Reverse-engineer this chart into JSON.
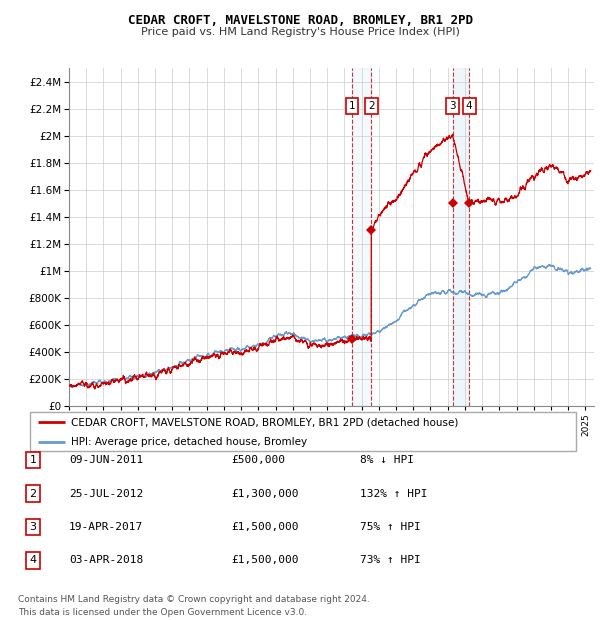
{
  "title": "CEDAR CROFT, MAVELSTONE ROAD, BROMLEY, BR1 2PD",
  "subtitle": "Price paid vs. HM Land Registry's House Price Index (HPI)",
  "footer": "Contains HM Land Registry data © Crown copyright and database right 2024.\nThis data is licensed under the Open Government Licence v3.0.",
  "legend_red": "CEDAR CROFT, MAVELSTONE ROAD, BROMLEY, BR1 2PD (detached house)",
  "legend_blue": "HPI: Average price, detached house, Bromley",
  "transactions": [
    {
      "num": 1,
      "date": "09-JUN-2011",
      "price": 500000,
      "pct": "8%",
      "dir": "↓",
      "year": 2011.44
    },
    {
      "num": 2,
      "date": "25-JUL-2012",
      "price": 1300000,
      "pct": "132%",
      "dir": "↑",
      "year": 2012.56
    },
    {
      "num": 3,
      "date": "19-APR-2017",
      "price": 1500000,
      "pct": "75%",
      "dir": "↑",
      "year": 2017.29
    },
    {
      "num": 4,
      "date": "03-APR-2018",
      "price": 1500000,
      "pct": "73%",
      "dir": "↑",
      "year": 2018.25
    }
  ],
  "table_rows": [
    {
      "num": 1,
      "date": "09-JUN-2011",
      "price": "£500,000",
      "pct": "8% ↓ HPI"
    },
    {
      "num": 2,
      "date": "25-JUL-2012",
      "price": "£1,300,000",
      "pct": "132% ↑ HPI"
    },
    {
      "num": 3,
      "date": "19-APR-2017",
      "price": "£1,500,000",
      "pct": "75% ↑ HPI"
    },
    {
      "num": 4,
      "date": "03-APR-2018",
      "price": "£1,500,000",
      "pct": "73% ↑ HPI"
    }
  ],
  "ylim": [
    0,
    2500000
  ],
  "yticks": [
    0,
    200000,
    400000,
    600000,
    800000,
    1000000,
    1200000,
    1400000,
    1600000,
    1800000,
    2000000,
    2200000,
    2400000
  ],
  "xlim_start": 1995.0,
  "xlim_end": 2025.5,
  "background_color": "#ffffff",
  "grid_color": "#cccccc",
  "red_color": "#cc0000",
  "blue_color": "#6699cc",
  "span_color": "#d0e8f8",
  "title_color": "#000000"
}
